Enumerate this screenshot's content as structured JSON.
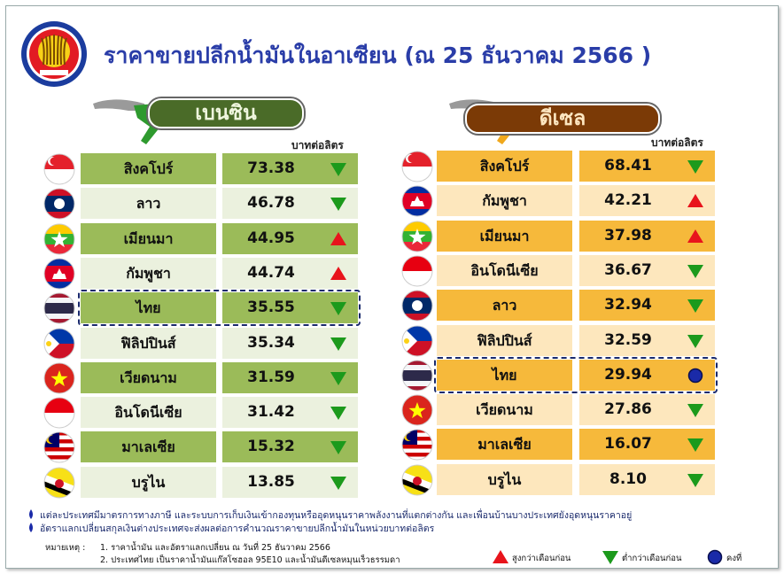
{
  "header": {
    "title": "ราคาขายปลีกน้ำมันในอาเซียน (ณ 25 ธันวาคม 2566 )"
  },
  "panels": [
    {
      "label": "เบนซิน",
      "unit": "บาทต่อลิตร",
      "rows": [
        {
          "country": "สิงคโปร์",
          "price": "73.38",
          "trend": "down"
        },
        {
          "country": "ลาว",
          "price": "46.78",
          "trend": "down"
        },
        {
          "country": "เมียนมา",
          "price": "44.95",
          "trend": "up"
        },
        {
          "country": "กัมพูชา",
          "price": "44.74",
          "trend": "up"
        },
        {
          "country": "ไทย",
          "price": "35.55",
          "trend": "down",
          "highlight": true
        },
        {
          "country": "ฟิลิปปินส์",
          "price": "35.34",
          "trend": "down"
        },
        {
          "country": "เวียดนาม",
          "price": "31.59",
          "trend": "down"
        },
        {
          "country": "อินโดนีเซีย",
          "price": "31.42",
          "trend": "down"
        },
        {
          "country": "มาเลเซีย",
          "price": "15.32",
          "trend": "down"
        },
        {
          "country": "บรูไน",
          "price": "13.85",
          "trend": "down"
        }
      ]
    },
    {
      "label": "ดีเซล",
      "unit": "บาทต่อลิตร",
      "rows": [
        {
          "country": "สิงคโปร์",
          "price": "68.41",
          "trend": "down"
        },
        {
          "country": "กัมพูชา",
          "price": "42.21",
          "trend": "up"
        },
        {
          "country": "เมียนมา",
          "price": "37.98",
          "trend": "up"
        },
        {
          "country": "อินโดนีเซีย",
          "price": "36.67",
          "trend": "down"
        },
        {
          "country": "ลาว",
          "price": "32.94",
          "trend": "down"
        },
        {
          "country": "ฟิลิปปินส์",
          "price": "32.59",
          "trend": "down"
        },
        {
          "country": "ไทย",
          "price": "29.94",
          "trend": "same",
          "highlight": true
        },
        {
          "country": "เวียดนาม",
          "price": "27.86",
          "trend": "down"
        },
        {
          "country": "มาเลเซีย",
          "price": "16.07",
          "trend": "down"
        },
        {
          "country": "บรูไน",
          "price": "8.10",
          "trend": "down"
        }
      ]
    }
  ],
  "notes": [
    "แต่ละประเทศมีมาตรการทางภาษี และระบบการเก็บเงินเข้ากองทุนหรืออุดหนุนราคาพลังงานที่แตกต่างกัน และเพื่อนบ้านบางประเทศยังอุดหนุนราคาอยู่",
    "อัตราแลกเปลี่ยนสกุลเงินต่างประเทศจะส่งผลต่อการคำนวณราคาขายปลีกน้ำมันในหน่วยบาทต่อลิตร"
  ],
  "remarks": {
    "label": "หมายเหตุ :",
    "items": [
      "1. ราคาน้ำมัน และอัตราแลกเปลี่ยน ณ วันที่  25 ธันวาคม 2566",
      "2. ประเทศไทย เป็นราคาน้ำมันแก๊สโซฮอล 95E10 และน้ำมันดีเซลหมุนเร็วธรรมดา"
    ]
  },
  "legend": [
    {
      "label": "สูงกว่าเดือนก่อน",
      "trend": "up"
    },
    {
      "label": "ต่ำกว่าเดือนก่อน",
      "trend": "down"
    },
    {
      "label": "คงที่",
      "trend": "same"
    }
  ]
}
